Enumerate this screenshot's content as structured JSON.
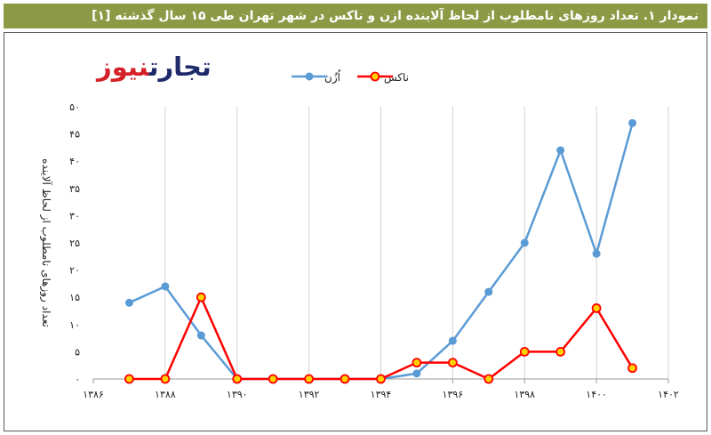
{
  "title": "نمودار ۱. تعداد روزهای نامطلوب از لحاظ آلاینده ازن و ناکس در شهر تهران طی ۱۵ سال گذشته [۱]",
  "logo": {
    "part1": "تجارت",
    "part2": "نیوز"
  },
  "chart_data": {
    "type": "line",
    "ylabel": "تعداد روزهای نامطلوب از لحاظ آلاینده",
    "xlim": [
      1386,
      1402
    ],
    "ylim": [
      0,
      50
    ],
    "xticks": [
      1386,
      1388,
      1390,
      1392,
      1394,
      1396,
      1398,
      1400,
      1402
    ],
    "xtick_labels": [
      "۱۳۸۶",
      "۱۳۸۸",
      "۱۳۹۰",
      "۱۳۹۲",
      "۱۳۹۴",
      "۱۳۹۶",
      "۱۳۹۸",
      "۱۴۰۰",
      "۱۴۰۲"
    ],
    "yticks": [
      0,
      5,
      10,
      15,
      20,
      25,
      30,
      35,
      40,
      45,
      50
    ],
    "ytick_labels": [
      "۰",
      "۵",
      "۱۰",
      "۱۵",
      "۲۰",
      "۲۵",
      "۳۰",
      "۳۵",
      "۴۰",
      "۴۵",
      "۵۰"
    ],
    "grid": "vertical",
    "legend_position": "top",
    "series": [
      {
        "name": "اُزُن",
        "color": "#5b9bd5",
        "x": [
          1387,
          1388,
          1389,
          1390,
          1391,
          1392,
          1393,
          1394,
          1395,
          1396,
          1397,
          1398,
          1399,
          1400,
          1401
        ],
        "values": [
          14,
          17,
          8,
          0,
          0,
          0,
          0,
          0,
          1,
          7,
          16,
          25,
          42,
          23,
          47
        ]
      },
      {
        "name": "ناکس",
        "color": "#ff0000",
        "marker_fill": "#ffd200",
        "x": [
          1387,
          1388,
          1389,
          1390,
          1391,
          1392,
          1393,
          1394,
          1395,
          1396,
          1397,
          1398,
          1399,
          1400,
          1401
        ],
        "values": [
          0,
          0,
          15,
          0,
          0,
          0,
          0,
          0,
          3,
          3,
          0,
          5,
          5,
          13,
          2
        ]
      }
    ]
  }
}
